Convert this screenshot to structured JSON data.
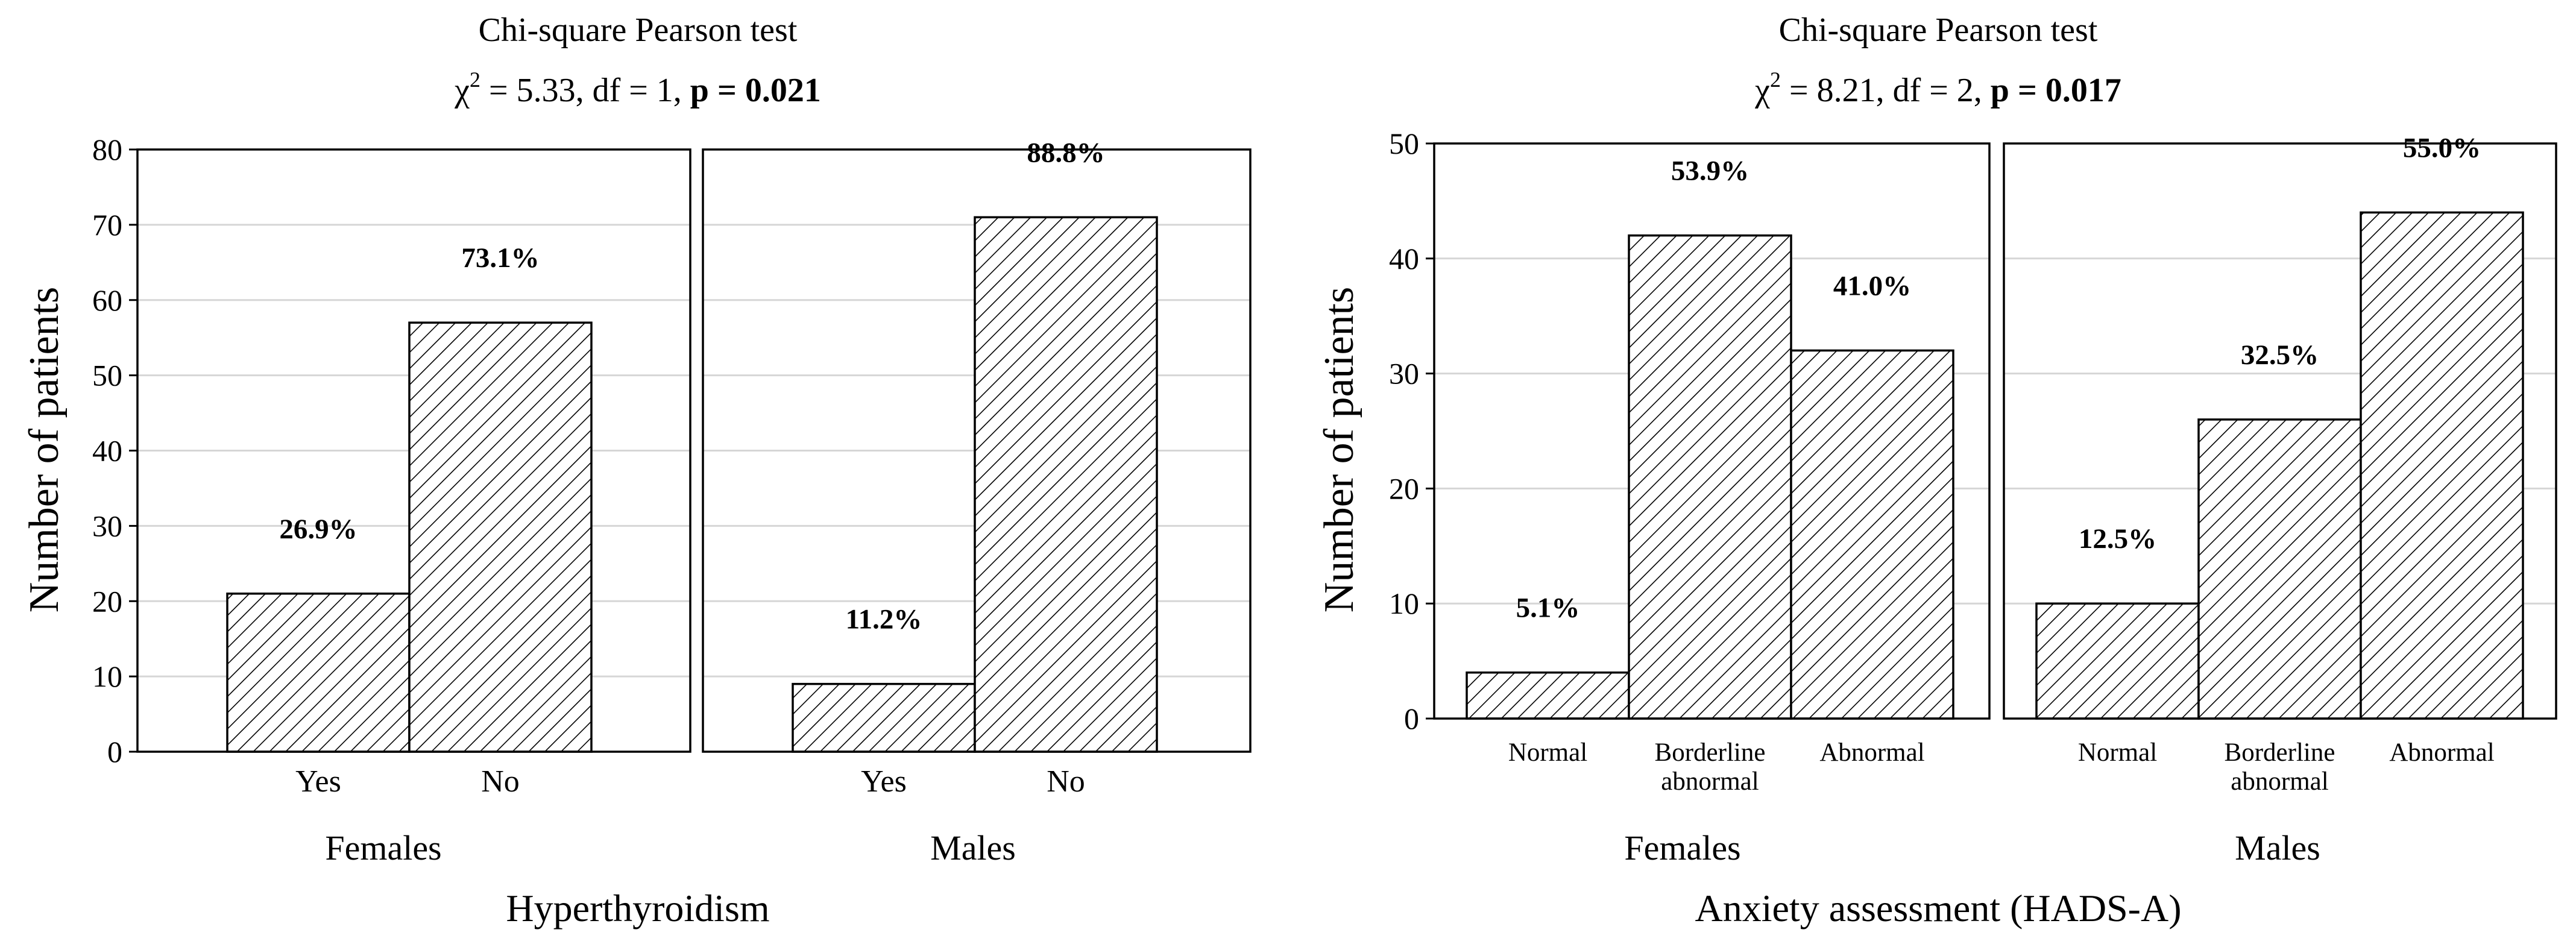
{
  "chart_data": [
    {
      "type": "bar",
      "title": "Chi-square Pearson test",
      "stats": {
        "chi_prefix": "χ",
        "chi_exp": "2",
        "chi_value": " = 5.33,  df = 1,  ",
        "p_label": "p = 0.021"
      },
      "ylabel": "Number of patients",
      "xlabel": "Hyperthyroidism",
      "ylim": [
        0,
        80
      ],
      "yticks": [
        "0",
        "10",
        "20",
        "30",
        "40",
        "50",
        "60",
        "70",
        "80"
      ],
      "grid": true,
      "bar_fill": "diagonal-hatch",
      "panels": [
        {
          "group": "Females",
          "categories": [
            [
              "Yes"
            ],
            [
              "No"
            ]
          ],
          "values": [
            21,
            57
          ],
          "labels": [
            "26.9%",
            "73.1%"
          ]
        },
        {
          "group": "Males",
          "categories": [
            [
              "Yes"
            ],
            [
              "No"
            ]
          ],
          "values": [
            9,
            71
          ],
          "labels": [
            "11.2%",
            "88.8%"
          ]
        }
      ]
    },
    {
      "type": "bar",
      "title": "Chi-square Pearson test",
      "stats": {
        "chi_prefix": "χ",
        "chi_exp": "2",
        "chi_value": " = 8.21,  df = 2,  ",
        "p_label": "p = 0.017"
      },
      "ylabel": "Number of patients",
      "xlabel": "Anxiety assessment (HADS-A)",
      "ylim": [
        0,
        50
      ],
      "yticks": [
        "0",
        "10",
        "20",
        "30",
        "40",
        "50"
      ],
      "grid": true,
      "bar_fill": "diagonal-hatch",
      "panels": [
        {
          "group": "Females",
          "categories": [
            [
              "Normal"
            ],
            [
              "Borderline",
              "abnormal"
            ],
            [
              "Abnormal"
            ]
          ],
          "values": [
            4,
            42,
            32
          ],
          "labels": [
            "5.1%",
            "53.9%",
            "41.0%"
          ]
        },
        {
          "group": "Males",
          "categories": [
            [
              "Normal"
            ],
            [
              "Borderline",
              "abnormal"
            ],
            [
              "Abnormal"
            ]
          ],
          "values": [
            10,
            26,
            44
          ],
          "labels": [
            "12.5%",
            "32.5%",
            "55.0%"
          ]
        }
      ]
    }
  ]
}
